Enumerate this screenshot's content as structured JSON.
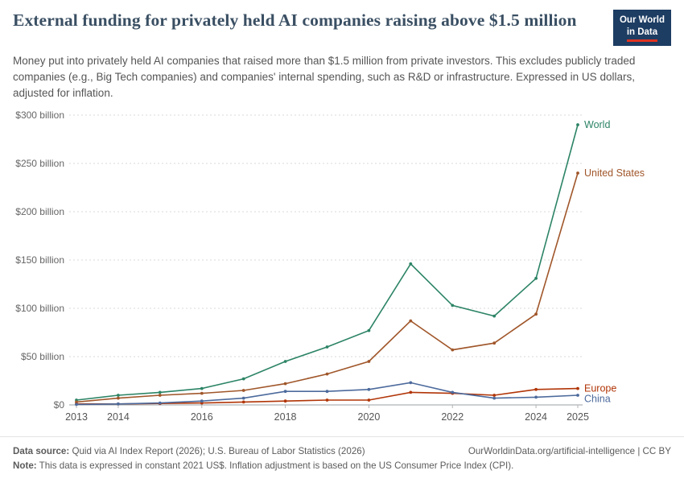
{
  "header": {
    "title": "External funding for privately held AI companies raising above $1.5 million",
    "subtitle": "Money put into privately held AI companies that raised more than $1.5 million from private investors. This excludes publicly traded companies (e.g., Big Tech companies) and companies' internal spending, such as R&D or infrastructure. Expressed in US dollars, adjusted for inflation.",
    "logo": {
      "line1": "Our World",
      "line2": "in Data",
      "bg_color": "#1d3d63",
      "accent_color": "#e0321f"
    }
  },
  "chart_data": {
    "type": "line",
    "title": "External funding for privately held AI companies raising above $1.5 million",
    "unit": "US$ billion",
    "x": [
      2013,
      2014,
      2015,
      2016,
      2017,
      2018,
      2019,
      2020,
      2021,
      2022,
      2023,
      2024,
      2025
    ],
    "xticks": [
      2013,
      2014,
      2016,
      2018,
      2020,
      2022,
      2024,
      2025
    ],
    "ylim": [
      0,
      300
    ],
    "yticks": [
      {
        "value": 0,
        "label": "$0"
      },
      {
        "value": 50,
        "label": "$50 billion"
      },
      {
        "value": 100,
        "label": "$100 billion"
      },
      {
        "value": 150,
        "label": "$150 billion"
      },
      {
        "value": 200,
        "label": "$200 billion"
      },
      {
        "value": 250,
        "label": "$250 billion"
      },
      {
        "value": 300,
        "label": "$300 billion"
      }
    ],
    "grid": "dashed-horizontal",
    "legend_position": "end-of-line-labels",
    "series": [
      {
        "name": "World",
        "color": "#2c8465",
        "values": [
          5,
          10,
          13,
          17,
          27,
          45,
          60,
          77,
          146,
          103,
          92,
          131,
          290
        ]
      },
      {
        "name": "United States",
        "color": "#a0562a",
        "values": [
          3,
          7,
          10,
          12,
          15,
          22,
          32,
          45,
          87,
          57,
          64,
          94,
          240
        ]
      },
      {
        "name": "Europe",
        "color": "#b13507",
        "values": [
          1,
          1,
          1.5,
          2,
          3,
          4,
          5,
          5,
          13,
          12,
          10,
          16,
          17
        ]
      },
      {
        "name": "China",
        "color": "#4c6a9c",
        "values": [
          0.5,
          1,
          2,
          4,
          7,
          14,
          14,
          16,
          23,
          13,
          7,
          8,
          10
        ]
      }
    ]
  },
  "footer": {
    "source_label": "Data source:",
    "source_text": "Quid via AI Index Report (2026); U.S. Bureau of Labor Statistics (2026)",
    "link_text": "OurWorldinData.org/artificial-intelligence | CC BY",
    "note_label": "Note:",
    "note_text": "This data is expressed in constant 2021 US$. Inflation adjustment is based on the US Consumer Price Index (CPI)."
  }
}
